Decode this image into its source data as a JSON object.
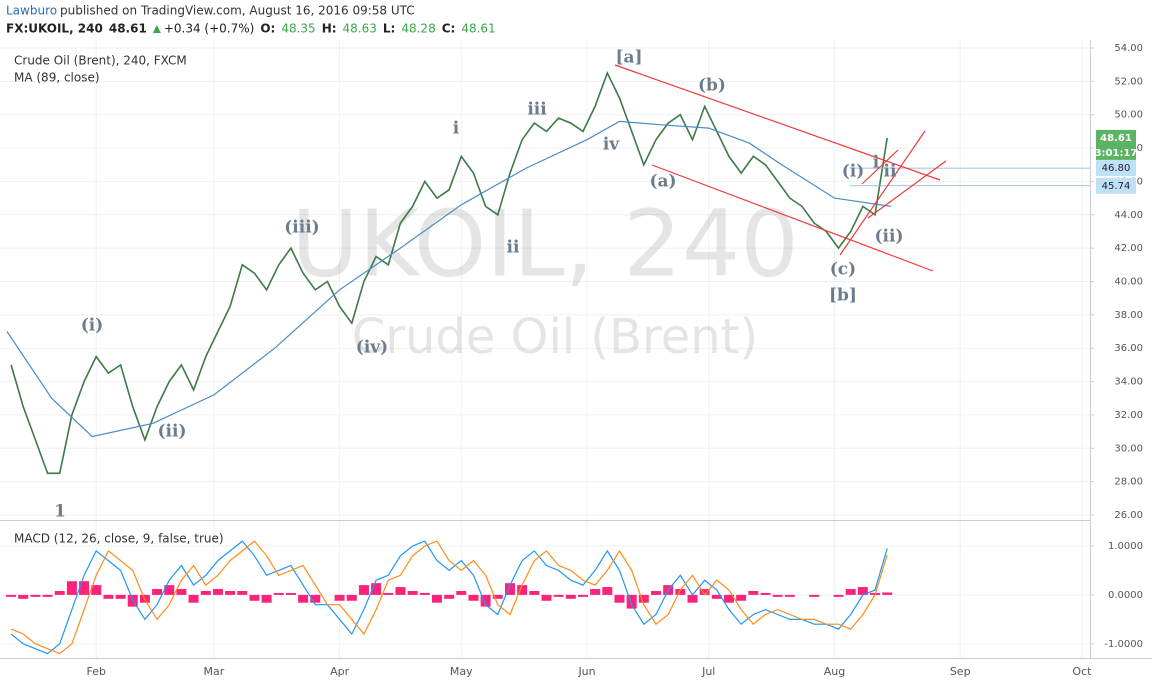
{
  "header": {
    "author": "Lawburo",
    "byline": "published on TradingView.com, August 16, 2016 09:58 UTC",
    "symbol": "FX:UKOIL, 240",
    "last": 48.61,
    "change": "+0.34 (+0.7%)",
    "ohlc": [
      {
        "label": "O:",
        "value": 48.35
      },
      {
        "label": "H:",
        "value": 48.63
      },
      {
        "label": "L:",
        "value": 48.28
      },
      {
        "label": "C:",
        "value": 48.61
      }
    ]
  },
  "watermark": [
    "UKOIL, 240",
    "Crude Oil (Brent)"
  ],
  "annotations": [
    "1",
    "(i)",
    "(ii)",
    "(iii)",
    "(iv)",
    "i",
    "ii",
    "iii",
    "iv",
    "[a]",
    "(a)",
    "(b)",
    "(c)",
    "[b]",
    "(i)",
    "i",
    "ii",
    "(ii)"
  ],
  "chart_data": [
    {
      "type": "line",
      "x": [
        10,
        13,
        16,
        19,
        22,
        25,
        28,
        31,
        34,
        37,
        40,
        43,
        46,
        49,
        52,
        55,
        58,
        61,
        64,
        67,
        70,
        73,
        76,
        79,
        82,
        85,
        88,
        91,
        94,
        97,
        100,
        103,
        106,
        109,
        112,
        115,
        118,
        121,
        124,
        127,
        130,
        133,
        136,
        139,
        142,
        145,
        148,
        151,
        154,
        157,
        160,
        163,
        166,
        169,
        172,
        175,
        178,
        181,
        184,
        187,
        190,
        193,
        196,
        199,
        202,
        205,
        208,
        211,
        214,
        217,
        220,
        223,
        226
      ],
      "xlim": [
        9,
        276
      ],
      "xticks": [
        {
          "value": 31,
          "label": "Feb"
        },
        {
          "value": 60,
          "label": "Mar"
        },
        {
          "value": 91,
          "label": "Apr"
        },
        {
          "value": 121,
          "label": "May"
        },
        {
          "value": 152,
          "label": "Jun"
        },
        {
          "value": 182,
          "label": "Jul"
        },
        {
          "value": 213,
          "label": "Aug"
        },
        {
          "value": 244,
          "label": "Sep"
        },
        {
          "value": 274,
          "label": "Oct"
        }
      ],
      "ylim": [
        25.7,
        54.48
      ],
      "yticks": [
        {
          "value": 26,
          "label": "26.00"
        },
        {
          "value": 28,
          "label": "28.00"
        },
        {
          "value": 30,
          "label": "30.00"
        },
        {
          "value": 32,
          "label": "32.00"
        },
        {
          "value": 34,
          "label": "34.00"
        },
        {
          "value": 36,
          "label": "36.00"
        },
        {
          "value": 38,
          "label": "38.00"
        },
        {
          "value": 40,
          "label": "40.00"
        },
        {
          "value": 42,
          "label": "42.00"
        },
        {
          "value": 44,
          "label": "44.00"
        },
        {
          "value": 46,
          "label": "46.00"
        },
        {
          "value": 48,
          "label": "48.00"
        },
        {
          "value": 50,
          "label": "50.00"
        },
        {
          "value": 52,
          "label": "52.00"
        },
        {
          "value": 54,
          "label": "54.00"
        }
      ],
      "grid": true,
      "series": [
        {
          "name": "Crude Oil (Brent), 240, FXCM",
          "color": "#3d7a45",
          "values": [
            35,
            32.5,
            30.5,
            28.5,
            28.5,
            32,
            34,
            35.5,
            34.5,
            35,
            32.5,
            30.5,
            32.5,
            34,
            35,
            33.5,
            35.5,
            37,
            38.5,
            41,
            40.5,
            39.5,
            41,
            42,
            40.5,
            39.5,
            40,
            38.5,
            37.5,
            40,
            41.5,
            41,
            43.5,
            44.5,
            46,
            45,
            45.5,
            47.5,
            46.5,
            44.5,
            44,
            46.5,
            48.5,
            49.5,
            49,
            49.8,
            49.5,
            49,
            50.5,
            52.5,
            51,
            49,
            47,
            48.5,
            49.5,
            50,
            48.5,
            50.5,
            49,
            47.5,
            46.5,
            47.5,
            47,
            46,
            45,
            44.5,
            43.5,
            43,
            42,
            43,
            44.5,
            44,
            48.61
          ]
        },
        {
          "name": "MA (89, close)",
          "color": "#4a8cc4",
          "x": [
            9,
            20,
            30,
            45,
            60,
            75,
            91,
            106,
            121,
            137,
            152,
            160,
            170,
            182,
            192,
            200,
            213,
            227
          ],
          "values": [
            37,
            33,
            30.7,
            31.5,
            33.2,
            36,
            39.5,
            42,
            44.6,
            46.8,
            48.5,
            49.6,
            49.4,
            49.2,
            48.3,
            47,
            45,
            44.5
          ]
        }
      ],
      "levels": [
        {
          "value": 46.8,
          "label": "46.80"
        },
        {
          "value": 45.74,
          "label": "45.74"
        }
      ],
      "price_label": {
        "value": 48.61,
        "label": "48.61",
        "countdown": "3:01:17"
      }
    },
    {
      "type": "line",
      "title": "MACD (12, 26, close, 9, false, true)",
      "ylim": [
        -1.29,
        1.49
      ],
      "yticks": [
        {
          "value": 1,
          "label": "1.0000"
        },
        {
          "value": 0,
          "label": "0.0000"
        },
        {
          "value": -1,
          "label": "-1.0000"
        }
      ],
      "series": [
        {
          "type": "bar",
          "color": "#ff0a6c",
          "values": [
            -0.04,
            -0.08,
            -0.04,
            -0.04,
            0.08,
            0.28,
            0.28,
            0.2,
            -0.08,
            -0.08,
            -0.24,
            -0.16,
            0.12,
            0.2,
            0.12,
            -0.16,
            0.08,
            0.12,
            0.08,
            0.08,
            -0.12,
            -0.16,
            0.04,
            0.04,
            -0.16,
            -0.16,
            0,
            -0.12,
            -0.12,
            0.2,
            0.24,
            0.04,
            0.16,
            0.08,
            0.04,
            -0.16,
            -0.08,
            0.08,
            -0.12,
            -0.24,
            -0.08,
            0.24,
            0.2,
            0.08,
            -0.12,
            -0.04,
            -0.08,
            -0.04,
            0.12,
            0.16,
            -0.16,
            -0.28,
            -0.16,
            0.08,
            0.2,
            0.12,
            -0.16,
            0.12,
            -0.08,
            -0.16,
            -0.12,
            0.08,
            0.04,
            -0.04,
            -0.04,
            0,
            -0.04,
            0,
            -0.04,
            0.12,
            0.16,
            0.04,
            0.05
          ]
        },
        {
          "type": "line",
          "color": "#2196f3",
          "values": [
            -0.8,
            -1.0,
            -1.1,
            -1.2,
            -1.0,
            -0.3,
            0.4,
            0.9,
            0.7,
            0.5,
            -0.1,
            -0.5,
            -0.2,
            0.3,
            0.6,
            0.2,
            0.4,
            0.7,
            0.9,
            1.1,
            0.8,
            0.4,
            0.5,
            0.6,
            0.2,
            -0.2,
            -0.2,
            -0.5,
            -0.8,
            -0.3,
            0.3,
            0.4,
            0.8,
            1.0,
            1.1,
            0.7,
            0.5,
            0.7,
            0.4,
            -0.2,
            -0.4,
            0.2,
            0.7,
            0.9,
            0.6,
            0.5,
            0.3,
            0.2,
            0.5,
            0.9,
            0.5,
            -0.2,
            -0.6,
            -0.4,
            0.1,
            0.4,
            0.0,
            0.3,
            0.1,
            -0.3,
            -0.6,
            -0.4,
            -0.3,
            -0.4,
            -0.5,
            -0.5,
            -0.6,
            -0.6,
            -0.7,
            -0.4,
            0.0,
            0.1,
            0.95
          ]
        },
        {
          "type": "line",
          "color": "#ff8c1a",
          "values": [
            -0.7,
            -0.8,
            -1.0,
            -1.1,
            -1.2,
            -1.0,
            -0.3,
            0.4,
            0.9,
            0.7,
            0.5,
            -0.1,
            -0.5,
            -0.2,
            0.3,
            0.6,
            0.2,
            0.4,
            0.7,
            0.9,
            1.1,
            0.8,
            0.4,
            0.5,
            0.6,
            0.2,
            -0.2,
            -0.2,
            -0.5,
            -0.8,
            -0.3,
            0.3,
            0.4,
            0.8,
            1.0,
            1.1,
            0.7,
            0.5,
            0.7,
            0.4,
            -0.2,
            -0.4,
            0.2,
            0.7,
            0.9,
            0.6,
            0.5,
            0.3,
            0.2,
            0.5,
            0.9,
            0.5,
            -0.2,
            -0.6,
            -0.4,
            0.1,
            0.4,
            0.0,
            0.3,
            0.1,
            -0.3,
            -0.6,
            -0.4,
            -0.3,
            -0.4,
            -0.5,
            -0.5,
            -0.6,
            -0.6,
            -0.7,
            -0.4,
            0.0,
            0.82
          ]
        }
      ]
    }
  ]
}
